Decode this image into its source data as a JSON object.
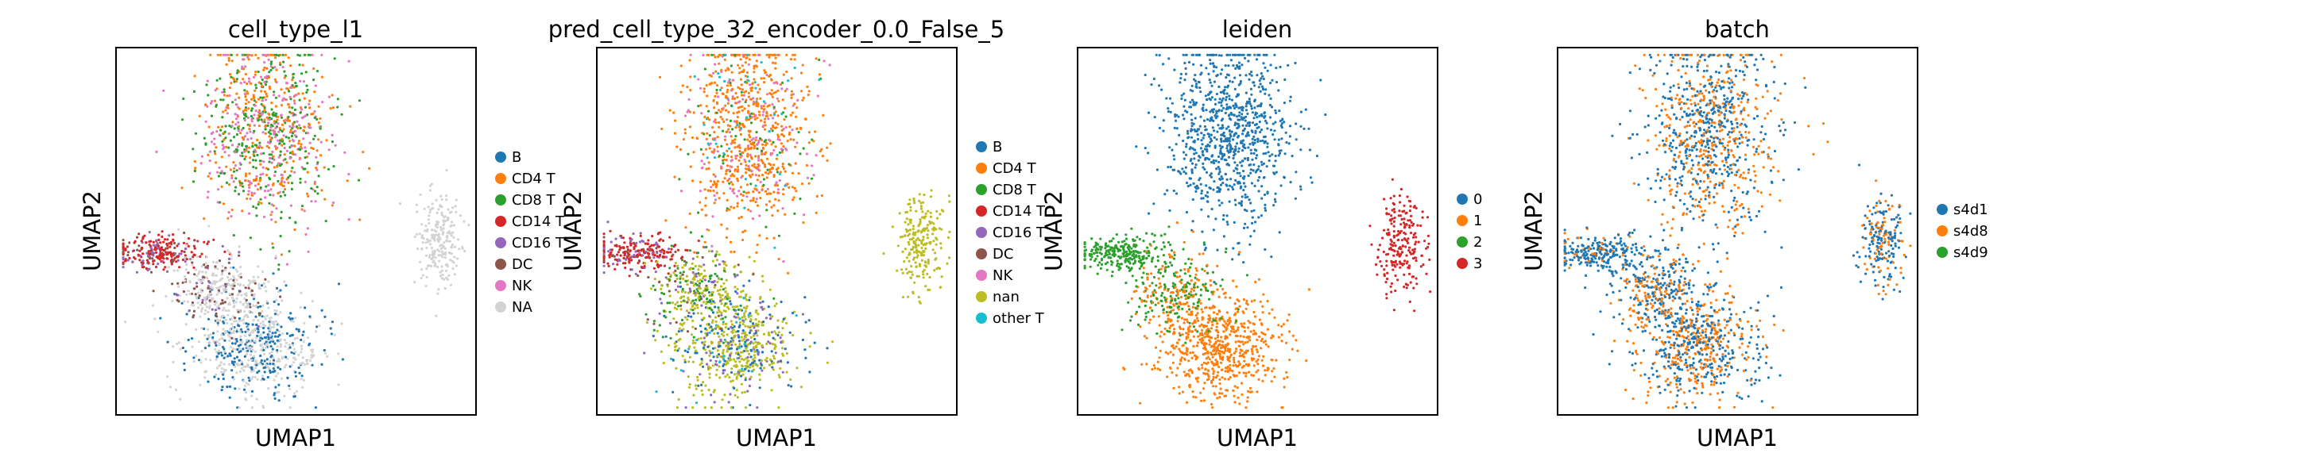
{
  "chart_data": [
    {
      "type": "scatter",
      "title": "cell_type_l1",
      "xlabel": "UMAP1",
      "ylabel": "UMAP2",
      "grid": false,
      "legend": "right",
      "series": [
        {
          "name": "B",
          "color": "#1f77b4"
        },
        {
          "name": "CD4 T",
          "color": "#ff7f0e"
        },
        {
          "name": "CD8 T",
          "color": "#2ca02c"
        },
        {
          "name": "CD14 T",
          "color": "#d62728"
        },
        {
          "name": "CD16 T",
          "color": "#9467bd"
        },
        {
          "name": "DC",
          "color": "#8c564b"
        },
        {
          "name": "NK",
          "color": "#e377c2"
        },
        {
          "name": "NA",
          "color": "#d3d3d3"
        }
      ]
    },
    {
      "type": "scatter",
      "title": "pred_cell_type_32_encoder_0.0_False_5",
      "xlabel": "UMAP1",
      "ylabel": "UMAP2",
      "grid": false,
      "legend": "right",
      "series": [
        {
          "name": "B",
          "color": "#1f77b4"
        },
        {
          "name": "CD4 T",
          "color": "#ff7f0e"
        },
        {
          "name": "CD8 T",
          "color": "#2ca02c"
        },
        {
          "name": "CD14 T",
          "color": "#d62728"
        },
        {
          "name": "CD16 T",
          "color": "#9467bd"
        },
        {
          "name": "DC",
          "color": "#8c564b"
        },
        {
          "name": "NK",
          "color": "#e377c2"
        },
        {
          "name": "nan",
          "color": "#bcbd22"
        },
        {
          "name": "other T",
          "color": "#17becf"
        }
      ]
    },
    {
      "type": "scatter",
      "title": "leiden",
      "xlabel": "UMAP1",
      "ylabel": "UMAP2",
      "grid": false,
      "legend": "right",
      "series": [
        {
          "name": "0",
          "color": "#1f77b4"
        },
        {
          "name": "1",
          "color": "#ff7f0e"
        },
        {
          "name": "2",
          "color": "#2ca02c"
        },
        {
          "name": "3",
          "color": "#d62728"
        }
      ]
    },
    {
      "type": "scatter",
      "title": "batch",
      "xlabel": "UMAP1",
      "ylabel": "UMAP2",
      "grid": false,
      "legend": "right",
      "series": [
        {
          "name": "s4d1",
          "color": "#1f77b4"
        },
        {
          "name": "s4d8",
          "color": "#ff7f0e"
        },
        {
          "name": "s4d9",
          "color": "#2ca02c"
        }
      ]
    }
  ]
}
